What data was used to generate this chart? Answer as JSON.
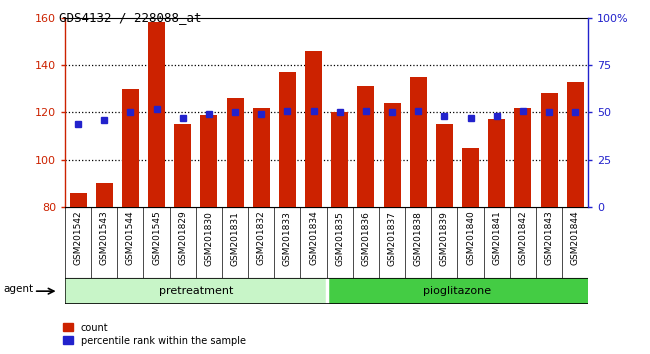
{
  "title": "GDS4132 / 228088_at",
  "categories": [
    "GSM201542",
    "GSM201543",
    "GSM201544",
    "GSM201545",
    "GSM201829",
    "GSM201830",
    "GSM201831",
    "GSM201832",
    "GSM201833",
    "GSM201834",
    "GSM201835",
    "GSM201836",
    "GSM201837",
    "GSM201838",
    "GSM201839",
    "GSM201840",
    "GSM201841",
    "GSM201842",
    "GSM201843",
    "GSM201844"
  ],
  "count_values": [
    86,
    90,
    130,
    158,
    115,
    119,
    126,
    122,
    137,
    146,
    120,
    131,
    124,
    135,
    115,
    105,
    117,
    122,
    128,
    133
  ],
  "percentile_values": [
    44,
    46,
    50,
    52,
    47,
    49,
    50,
    49,
    51,
    51,
    50,
    51,
    50,
    51,
    48,
    47,
    48,
    51,
    50,
    50
  ],
  "ylim_left": [
    80,
    160
  ],
  "ylim_right": [
    0,
    100
  ],
  "group1_count": 10,
  "group1_label": "pretreatment",
  "group2_label": "pioglitazone",
  "bar_color": "#cc2200",
  "marker_color": "#2222cc",
  "left_axis_color": "#cc2200",
  "right_axis_color": "#2222cc",
  "left_yticks": [
    80,
    100,
    120,
    140,
    160
  ],
  "right_yticks": [
    0,
    25,
    50,
    75,
    100
  ],
  "right_yticklabels": [
    "0",
    "25",
    "50",
    "75",
    "100%"
  ],
  "plot_bg": "#ffffff",
  "tick_area_bg": "#c8c8c8",
  "green_light": "#c8f5c8",
  "green_dark": "#44cc44"
}
